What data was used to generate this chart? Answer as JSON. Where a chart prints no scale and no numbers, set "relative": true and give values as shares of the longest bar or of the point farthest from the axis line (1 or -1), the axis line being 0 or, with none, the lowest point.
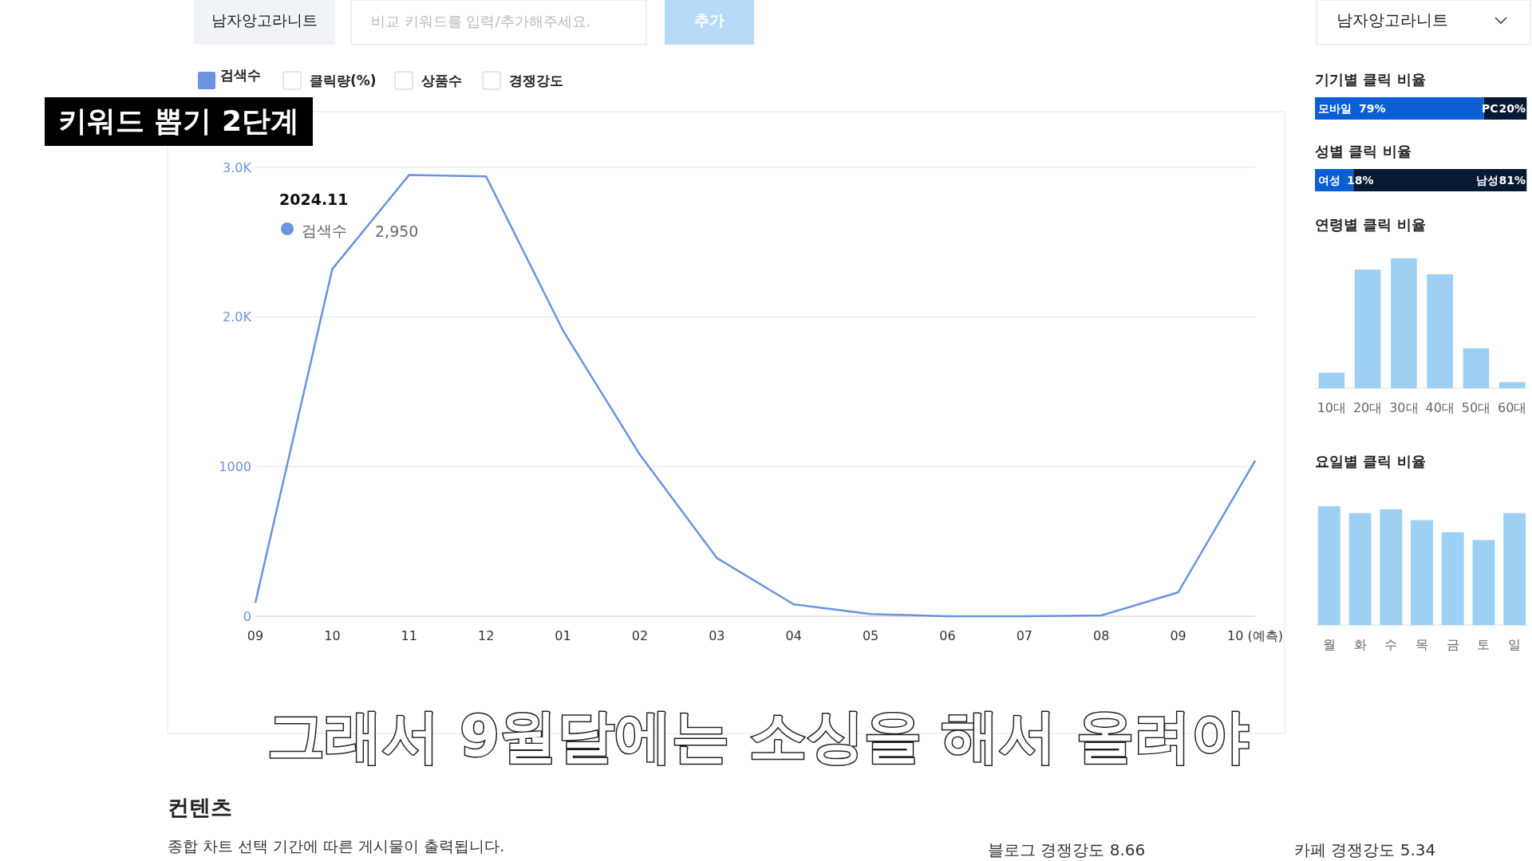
{
  "chart_data": [
    {
      "type": "line",
      "categories": [
        "09",
        "10",
        "11",
        "12",
        "01",
        "02",
        "03",
        "04",
        "05",
        "06",
        "07",
        "08",
        "09",
        "10 (예측)"
      ],
      "series": [
        {
          "name": "검색수",
          "color": "#6a93e0",
          "values": [
            90,
            2320,
            2950,
            2940,
            1910,
            1080,
            390,
            80,
            15,
            0,
            0,
            5,
            160,
            1040
          ]
        }
      ],
      "ylim": [
        0,
        3000
      ],
      "yticks": [
        0,
        1000,
        {
          "value": 2000,
          "label": "2.0K"
        },
        {
          "value": 3000,
          "label": "3.0K"
        }
      ],
      "grid": "y",
      "legend": "top left",
      "marker": "none",
      "annotations": [
        "남자앙고라니트",
        "비교 키워드를 입력/추가해주세요.",
        "추가",
        "클릭량(%)",
        "상품수",
        "경쟁강도",
        "키워드 뽑기 2단계",
        "2024.11",
        "검색수",
        "2,950",
        "그래서 9월달에는 소싱을 해서 올려야",
        "컨텐츠",
        "종합 차트 선택 기간에 따른 게시물이 출력됩니다.",
        "블로그 경쟁강도 8.66",
        "카페 경쟁강도 5.34",
        "남자앙고라니트"
      ]
    },
    {
      "type": "bar",
      "title": "기기별 클릭 비율",
      "orientation": "horizontal",
      "stacked": true,
      "categories": [
        null
      ],
      "series": [
        {
          "name": "모바일",
          "color": "#0b5fd4",
          "values": [
            79
          ],
          "value_labels": [
            "79%"
          ]
        },
        {
          "name": "PC",
          "color": "#061a33",
          "values": [
            20
          ],
          "value_labels": [
            "20%"
          ]
        }
      ]
    },
    {
      "type": "bar",
      "title": "성별 클릭 비율",
      "orientation": "horizontal",
      "stacked": true,
      "categories": [
        null
      ],
      "series": [
        {
          "name": "여성",
          "color": "#0b5fd4",
          "values": [
            18
          ],
          "value_labels": [
            "18%"
          ]
        },
        {
          "name": "남성",
          "color": "#061a33",
          "values": [
            81
          ],
          "value_labels": [
            "81%"
          ]
        }
      ]
    },
    {
      "type": "bar",
      "title": "연령별 클릭 비율",
      "relative": true,
      "categories": [
        "10대",
        "20대",
        "30대",
        "40대",
        "50대",
        "60대"
      ],
      "values": [
        0.12,
        0.913,
        1,
        0.877,
        0.307,
        0.047
      ],
      "color": "#9dd0f3"
    },
    {
      "type": "bar",
      "title": "요일별 클릭 비율",
      "relative": true,
      "categories": [
        "월",
        "화",
        "수",
        "목",
        "금",
        "토",
        "일"
      ],
      "values": [
        1,
        0.942,
        0.974,
        0.883,
        0.781,
        0.715,
        0.942
      ],
      "color": "#9dd0f3"
    }
  ]
}
